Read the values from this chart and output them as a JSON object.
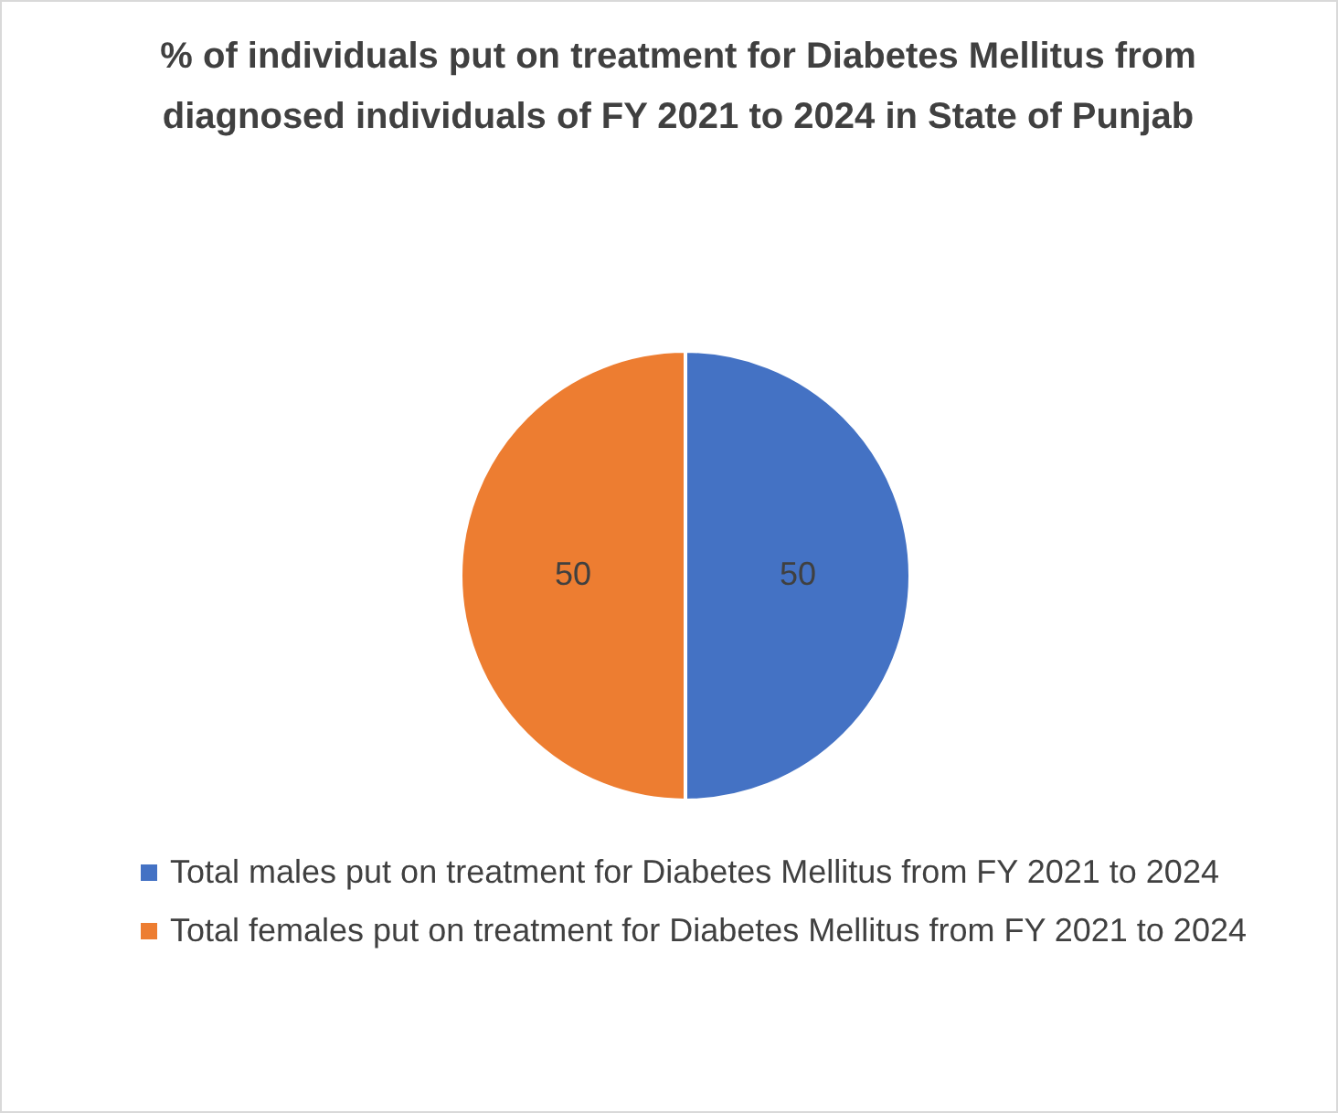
{
  "chart_data": {
    "type": "pie",
    "title": "% of individuals put on treatment for Diabetes Mellitus from diagnosed individuals of FY 2021 to 2024 in State of Punjab",
    "categories": [
      "Total males put on treatment for Diabetes Mellitus from FY 2021 to 2024",
      "Total females put on treatment for Diabetes Mellitus from FY 2021 to 2024"
    ],
    "values": [
      50,
      50
    ],
    "colors": [
      "#4472c4",
      "#ed7d31"
    ],
    "data_labels": true,
    "legend": "bottom"
  }
}
